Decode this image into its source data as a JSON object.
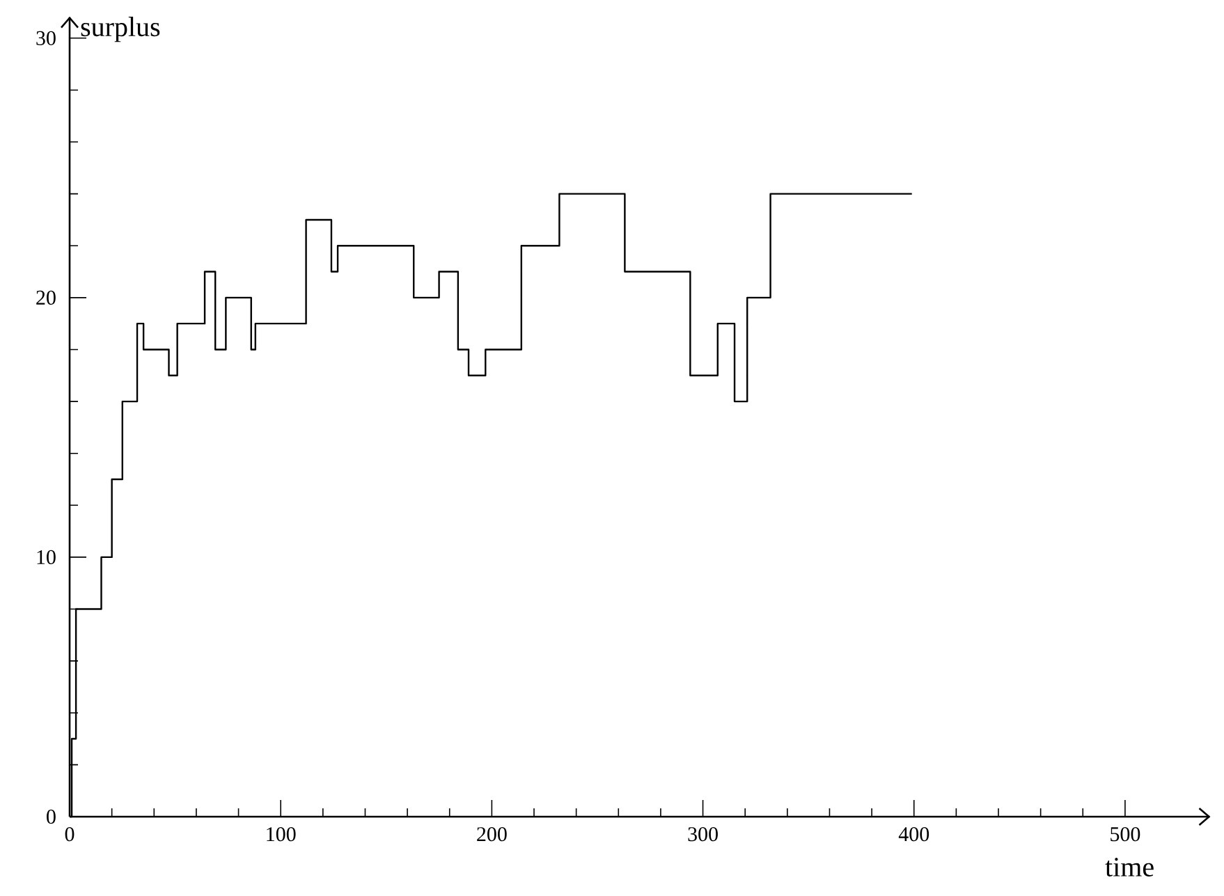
{
  "chart_data": {
    "type": "step",
    "xlabel": "time",
    "ylabel": "surplus",
    "color": "#000000",
    "x": [
      0,
      1,
      3,
      15,
      20,
      25,
      32,
      35,
      47,
      51,
      64,
      69,
      74,
      86,
      88,
      112,
      124,
      127,
      163,
      175,
      184,
      189,
      197,
      214,
      232,
      263,
      294,
      307,
      315,
      321,
      332,
      399
    ],
    "values": [
      0,
      3,
      8,
      10,
      13,
      16,
      19,
      18,
      17,
      19,
      21,
      18,
      20,
      18,
      19,
      23,
      21,
      22,
      20,
      21,
      18,
      17,
      18,
      22,
      24,
      21,
      17,
      19,
      16,
      20,
      24,
      24
    ],
    "xlim": [
      0,
      540
    ],
    "ylim": [
      0,
      30.8
    ],
    "xticks": [
      0,
      100,
      200,
      300,
      400,
      500
    ],
    "yticks": [
      0,
      10,
      20,
      30
    ]
  }
}
